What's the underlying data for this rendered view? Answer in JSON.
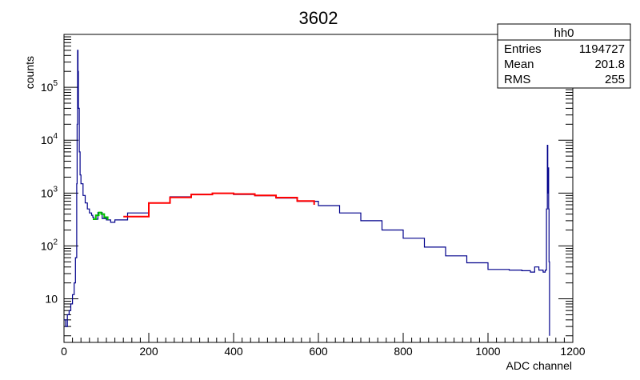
{
  "chart_data": {
    "type": "line",
    "title": "3602",
    "xlabel": "ADC channel",
    "ylabel": "counts",
    "xlim": [
      0,
      1200
    ],
    "ylim": [
      1.5,
      1000000
    ],
    "yscale": "log",
    "grid": false,
    "x_ticks": [
      "0",
      "200",
      "400",
      "600",
      "800",
      "1000",
      "1200"
    ],
    "y_ticks": [
      {
        "base": "10",
        "exp": ""
      },
      {
        "base": "10",
        "exp": "2"
      },
      {
        "base": "10",
        "exp": "3"
      },
      {
        "base": "10",
        "exp": "4"
      },
      {
        "base": "10",
        "exp": "5"
      }
    ],
    "stats_box": {
      "name": "hh0",
      "rows": [
        {
          "label": "Entries",
          "value": "1194727"
        },
        {
          "label": "Mean",
          "value": "201.8"
        },
        {
          "label": "RMS",
          "value": "255"
        }
      ]
    },
    "series": [
      {
        "color": "#00008b",
        "x": [
          0,
          4,
          8,
          12,
          16,
          20,
          24,
          27,
          30,
          31,
          32,
          33,
          34,
          36,
          38,
          40,
          45,
          50,
          55,
          60,
          65,
          68,
          70,
          80,
          90,
          100,
          110,
          120,
          150,
          200,
          250,
          300,
          350,
          400,
          450,
          500,
          550,
          600,
          650,
          700,
          750,
          800,
          850,
          900,
          950,
          1000,
          1050,
          1080,
          1100,
          1110,
          1120,
          1130,
          1135,
          1138,
          1140,
          1141,
          1142,
          1143,
          1144,
          1145
        ],
        "y": [
          4,
          3,
          5,
          6,
          8,
          12,
          20,
          60,
          1500,
          20000,
          500000,
          200000,
          40000,
          6000,
          2200,
          1500,
          900,
          650,
          500,
          420,
          380,
          350,
          320,
          430,
          330,
          310,
          280,
          310,
          420,
          650,
          850,
          950,
          980,
          940,
          890,
          800,
          700,
          580,
          420,
          300,
          200,
          140,
          95,
          65,
          48,
          36,
          35,
          34,
          32,
          40,
          35,
          32,
          35,
          500,
          8000,
          1000,
          3000,
          500,
          50,
          2
        ]
      },
      {
        "color": "#00c000",
        "x": [
          68,
          75,
          82,
          88,
          95,
          103
        ],
        "y": [
          320,
          380,
          430,
          400,
          350,
          310
        ]
      },
      {
        "color": "#ff0000",
        "x": [
          140,
          200,
          250,
          300,
          350,
          400,
          450,
          500,
          550,
          590
        ],
        "y": [
          360,
          650,
          830,
          940,
          990,
          960,
          900,
          820,
          710,
          600
        ]
      }
    ]
  }
}
